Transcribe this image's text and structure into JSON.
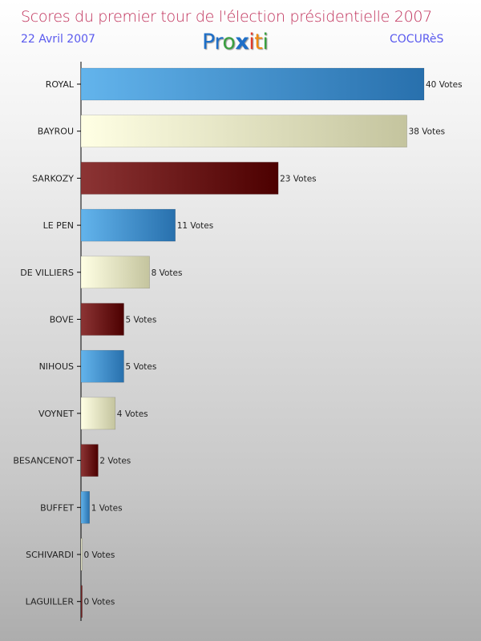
{
  "header": {
    "title": "Scores du premier tour de l'élection présidentielle 2007",
    "date": "22 Avril 2007",
    "source": "COCURèS",
    "logo": "Proxiti"
  },
  "colors": {
    "blue": [
      "#63b4ec",
      "#2870ad"
    ],
    "cream": [
      "#ffffe4",
      "#c4c49e"
    ],
    "maroon": [
      "#8c3434",
      "#4c0000"
    ]
  },
  "chart_data": {
    "type": "bar",
    "orientation": "horizontal",
    "title": "Scores du premier tour de l'élection présidentielle 2007",
    "categories": [
      "ROYAL",
      "BAYROU",
      "SARKOZY",
      "LE PEN",
      "DE VILLIERS",
      "BOVE",
      "NIHOUS",
      "VOYNET",
      "BESANCENOT",
      "BUFFET",
      "SCHIVARDI",
      "LAGUILLER"
    ],
    "values": [
      40,
      38,
      23,
      11,
      8,
      5,
      5,
      4,
      2,
      1,
      0,
      0
    ],
    "labels": [
      "40 Votes",
      "38 Votes",
      "23 Votes",
      "11 Votes",
      "8 Votes",
      "5 Votes",
      "5 Votes",
      "4 Votes",
      "2 Votes",
      "1 Votes",
      "0 Votes",
      "0 Votes"
    ],
    "color_cycle": [
      "blue",
      "cream",
      "maroon"
    ],
    "xlim": [
      0,
      40
    ],
    "grid": false
  }
}
